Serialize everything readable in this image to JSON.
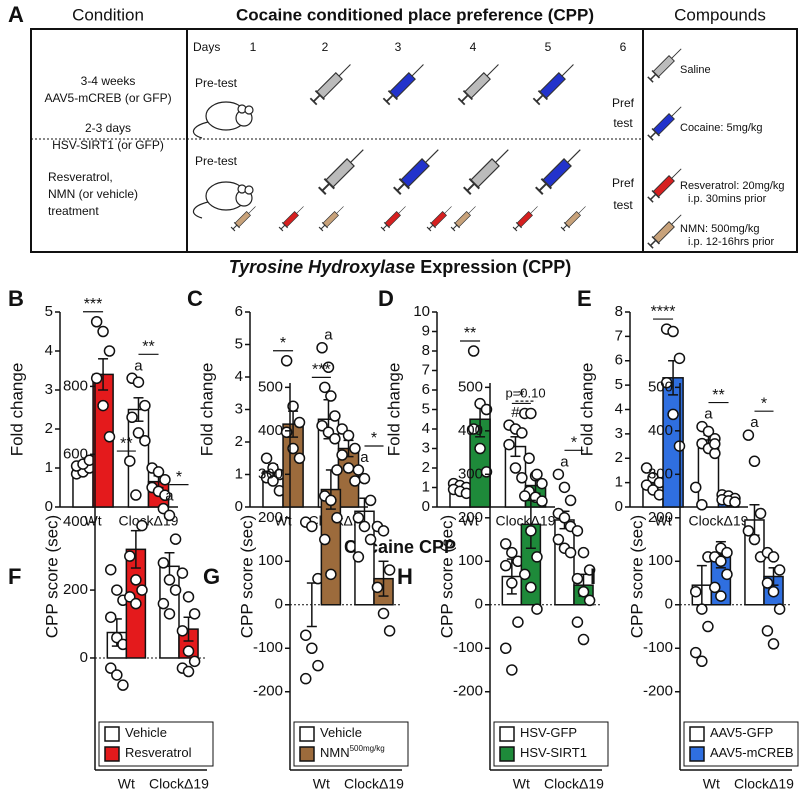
{
  "diagram": {
    "label": "A",
    "headers": [
      "Condition",
      "Cocaine conditioned place preference (CPP)",
      "Compounds"
    ],
    "conditions": [
      [
        "3-4 weeks",
        "AAV5-mCREB (or GFP)",
        "2-3 days",
        "HSV-SIRT1 (or GFP)"
      ],
      [
        "Resveratrol,",
        "NMN (or vehicle)",
        "treatment"
      ]
    ],
    "days_label": "Days",
    "days": [
      1,
      2,
      3,
      4,
      5,
      6
    ],
    "pretest": [
      "Pre-test",
      "Pre-test"
    ],
    "preftest": [
      [
        "Pref",
        "test"
      ],
      [
        "Pref",
        "test"
      ]
    ],
    "compounds": [
      [
        "Saline"
      ],
      [
        "Cocaine: 5mg/kg"
      ],
      [
        "Resveratrol: 20mg/kg",
        "i.p. 30mins prior"
      ],
      [
        "NMN: 500mg/kg",
        "i.p. 12-16hrs prior"
      ]
    ]
  },
  "headings": {
    "th_italic": "Tyrosine Hydroxylase",
    "th_rest": "Expression (CPP)",
    "cpp": "Cocaine CPP"
  },
  "chart_data": [
    {
      "type": "bar",
      "label": "B",
      "ylabel": "Fold change",
      "categories": [
        "Wt",
        "ClockΔ19"
      ],
      "ylim": [
        0,
        5
      ],
      "yticks": [
        0,
        1,
        2,
        3,
        4,
        5
      ],
      "series": [
        {
          "color": "#ffffff",
          "values": [
            1.0,
            2.5
          ],
          "errors": [
            0.1,
            0.3
          ],
          "points": [
            [
              0.85,
              0.9,
              1.0,
              1.05,
              1.1,
              1.2
            ],
            [
              3.3,
              3.2,
              2.6,
              2.3,
              1.9,
              1.7
            ]
          ]
        },
        {
          "color": "#e41a1c",
          "values": [
            3.4,
            0.65
          ],
          "errors": [
            0.4,
            0.15
          ],
          "points": [
            [
              4.75,
              4.5,
              4.0,
              3.3,
              2.6,
              1.8
            ],
            [
              1.0,
              0.9,
              0.7,
              0.5,
              0.4,
              0.3
            ]
          ]
        }
      ],
      "annotations": [
        {
          "text": "***",
          "group": 0
        },
        {
          "text": "**",
          "group": 1
        },
        {
          "text": "a",
          "group": 1,
          "series": 0
        }
      ]
    },
    {
      "type": "bar",
      "label": "C",
      "ylabel": "Fold change",
      "categories": [
        "Wt",
        "ClockΔ19"
      ],
      "ylim": [
        0,
        6
      ],
      "yticks": [
        0,
        1,
        2,
        3,
        4,
        5,
        6
      ],
      "series": [
        {
          "color": "#ffffff",
          "values": [
            1.1,
            2.7
          ],
          "errors": [
            0.2,
            0.6
          ],
          "points": [
            [
              1.5,
              1.2,
              1.0,
              0.9,
              0.8,
              0.5
            ],
            [
              4.9,
              4.3,
              2.8,
              2.5,
              2.3,
              2.1
            ]
          ]
        },
        {
          "color": "#9c6b3c",
          "values": [
            2.55,
            1.8
          ],
          "errors": [
            0.4,
            0.25
          ],
          "points": [
            [
              4.5,
              3.1,
              2.6,
              2.3,
              1.8,
              1.5
            ],
            [
              2.4,
              2.2,
              1.8,
              1.6,
              1.2,
              0.8
            ]
          ]
        }
      ],
      "annotations": [
        {
          "text": "*",
          "group": 0
        },
        {
          "text": "a",
          "group": 1,
          "series": 0
        }
      ]
    },
    {
      "type": "bar",
      "label": "D",
      "ylabel": "Fold change",
      "categories": [
        "Wt",
        "ClockΔ19"
      ],
      "ylim": [
        0,
        10
      ],
      "yticks": [
        0,
        1,
        2,
        3,
        4,
        5,
        6,
        7,
        8,
        9,
        10
      ],
      "series": [
        {
          "color": "#ffffff",
          "values": [
            1.0,
            3.1
          ],
          "errors": [
            0.1,
            0.5
          ],
          "points": [
            [
              1.2,
              1.1,
              1.0,
              0.9,
              0.8,
              0.7
            ],
            [
              4.2,
              4.0,
              3.8,
              3.2,
              2.0,
              1.5
            ]
          ]
        },
        {
          "color": "#1e8a3a",
          "values": [
            4.5,
            1.1
          ],
          "errors": [
            0.9,
            0.4
          ],
          "points": [
            [
              8.0,
              5.3,
              5.0,
              4.0,
              3.0,
              1.8
            ],
            [
              2.5,
              1.6,
              1.2,
              0.8,
              0.5,
              0.3
            ]
          ]
        }
      ],
      "annotations": [
        {
          "text": "**",
          "group": 0
        },
        {
          "text": "p=0.10",
          "group": 1,
          "dashed": true
        },
        {
          "text": "#",
          "group": 1,
          "series": 0
        }
      ]
    },
    {
      "type": "bar",
      "label": "E",
      "ylabel": "Fold change",
      "categories": [
        "Wt",
        "ClockΔ19"
      ],
      "ylim": [
        0,
        8
      ],
      "yticks": [
        0,
        1,
        2,
        3,
        4,
        5,
        6,
        7,
        8
      ],
      "series": [
        {
          "color": "#ffffff",
          "values": [
            1.0,
            2.75
          ],
          "errors": [
            0.15,
            0.2
          ],
          "points": [
            [
              1.6,
              1.2,
              1.0,
              0.9,
              0.7,
              0.5
            ],
            [
              3.3,
              3.1,
              2.8,
              2.6,
              2.4,
              2.2
            ]
          ]
        },
        {
          "color": "#2f6fe0",
          "values": [
            5.3,
            0.35
          ],
          "errors": [
            0.7,
            0.07
          ],
          "points": [
            [
              7.3,
              7.2,
              6.1,
              5.1,
              3.8,
              2.5
            ],
            [
              0.5,
              0.45,
              0.35,
              0.3,
              0.25,
              0.2
            ]
          ]
        }
      ],
      "annotations": [
        {
          "text": "****",
          "group": 0
        },
        {
          "text": "**",
          "group": 1
        },
        {
          "text": "a",
          "group": 1,
          "series": 0
        }
      ]
    },
    {
      "type": "bar",
      "label": "F",
      "ylabel": "CPP score (sec)",
      "categories": [
        "Wt",
        "ClockΔ19"
      ],
      "ylim": [
        -330,
        810
      ],
      "yticks": [
        0,
        200,
        400,
        600,
        800
      ],
      "zero_line": true,
      "legend": "lower left",
      "series": [
        {
          "name": "Vehicle",
          "color": "#ffffff",
          "values": [
            75,
            270
          ],
          "errors": [
            40,
            40
          ],
          "points": [
            [
              260,
              200,
              170,
              120,
              60,
              40,
              -30,
              -50,
              -80
            ],
            [
              440,
              420,
              350,
              280,
              230,
              200,
              160,
              130
            ]
          ]
        },
        {
          "name": "Resveratrol",
          "color": "#e41a1c",
          "values": [
            320,
            85
          ],
          "errors": [
            55,
            35
          ],
          "points": [
            [
              580,
              480,
              390,
              300,
              230,
              200,
              180,
              160
            ],
            [
              250,
              180,
              130,
              80,
              20,
              -10,
              -30,
              -40
            ]
          ]
        }
      ],
      "annotations": [
        {
          "text": "**",
          "group": 0
        },
        {
          "text": "*",
          "group": 1
        },
        {
          "text": "a",
          "group": 1,
          "series": 0
        }
      ]
    },
    {
      "type": "bar",
      "label": "G",
      "ylabel": "CPP score (sec)",
      "categories": [
        "Wt",
        "ClockΔ19"
      ],
      "ylim": [
        -380,
        510
      ],
      "yticks": [
        -200,
        -100,
        0,
        100,
        200,
        300,
        400,
        500
      ],
      "zero_line": true,
      "legend": "lower left",
      "series": [
        {
          "name": "Vehicle",
          "color": "#ffffff",
          "values": [
            0,
            215
          ],
          "errors": [
            50,
            30
          ],
          "points": [
            [
              190,
              180,
              60,
              -70,
              -100,
              -140,
              -170
            ],
            [
              310,
              290,
              240,
              200,
              180,
              150,
              110
            ]
          ]
        },
        {
          "name": "NMN",
          "name_sup": "500mg/kg",
          "color": "#9c6b3c",
          "values": [
            265,
            60
          ],
          "errors": [
            45,
            40
          ],
          "points": [
            [
              500,
              480,
              310,
              250,
              240,
              200,
              150,
              70
            ],
            [
              180,
              170,
              80,
              40,
              -20,
              -60
            ]
          ]
        }
      ],
      "annotations": [
        {
          "text": "***",
          "group": 0
        },
        {
          "text": "*",
          "group": 1
        },
        {
          "text": "a",
          "group": 1,
          "series": 0
        }
      ]
    },
    {
      "type": "bar",
      "label": "H",
      "ylabel": "CPP score (sec)",
      "categories": [
        "Wt",
        "ClockΔ19"
      ],
      "ylim": [
        -380,
        510
      ],
      "yticks": [
        -200,
        -100,
        0,
        100,
        200,
        300,
        400,
        500
      ],
      "zero_line": true,
      "legend": "lower left",
      "series": [
        {
          "name": "HSV-GFP",
          "color": "#ffffff",
          "values": [
            65,
            195
          ],
          "errors": [
            40,
            20
          ],
          "points": [
            [
              140,
              120,
              100,
              90,
              50,
              -40,
              -100,
              -150
            ],
            [
              300,
              270,
              240,
              210,
              200,
              180,
              150,
              130,
              120
            ]
          ]
        },
        {
          "name": "HSV-SIRT1",
          "color": "#1e8a3a",
          "values": [
            185,
            45
          ],
          "errors": [
            55,
            25
          ],
          "points": [
            [
              440,
              440,
              300,
              250,
              170,
              110,
              70,
              40,
              -10
            ],
            [
              170,
              120,
              80,
              60,
              30,
              10,
              -40,
              -80
            ]
          ]
        }
      ],
      "annotations": [
        {
          "text": "*",
          "group": 0
        },
        {
          "text": "*",
          "group": 1
        },
        {
          "text": "a",
          "group": 1,
          "series": 0
        }
      ]
    },
    {
      "type": "bar",
      "label": "I",
      "ylabel": "CPP score (sec)",
      "categories": [
        "Wt",
        "ClockΔ19"
      ],
      "ylim": [
        -380,
        510
      ],
      "yticks": [
        -200,
        -100,
        0,
        100,
        200,
        300,
        400,
        500
      ],
      "zero_line": true,
      "legend": "lower left",
      "series": [
        {
          "name": "AAV5-GFP",
          "color": "#ffffff",
          "values": [
            45,
            195
          ],
          "errors": [
            45,
            35
          ],
          "points": [
            [
              270,
              230,
              110,
              30,
              -10,
              -50,
              -110,
              -130
            ],
            [
              390,
              330,
              210,
              170,
              150,
              110
            ]
          ]
        },
        {
          "name": "AAV5-mCREB",
          "color": "#2f6fe0",
          "values": [
            115,
            65
          ],
          "errors": [
            30,
            20
          ],
          "points": [
            [
              370,
              130,
              120,
              110,
              100,
              70,
              40,
              20
            ],
            [
              120,
              110,
              80,
              50,
              30,
              -10,
              -60,
              -90
            ]
          ]
        }
      ],
      "annotations": [
        {
          "text": "*",
          "group": 1
        },
        {
          "text": "a",
          "group": 1,
          "series": 0
        }
      ]
    }
  ]
}
